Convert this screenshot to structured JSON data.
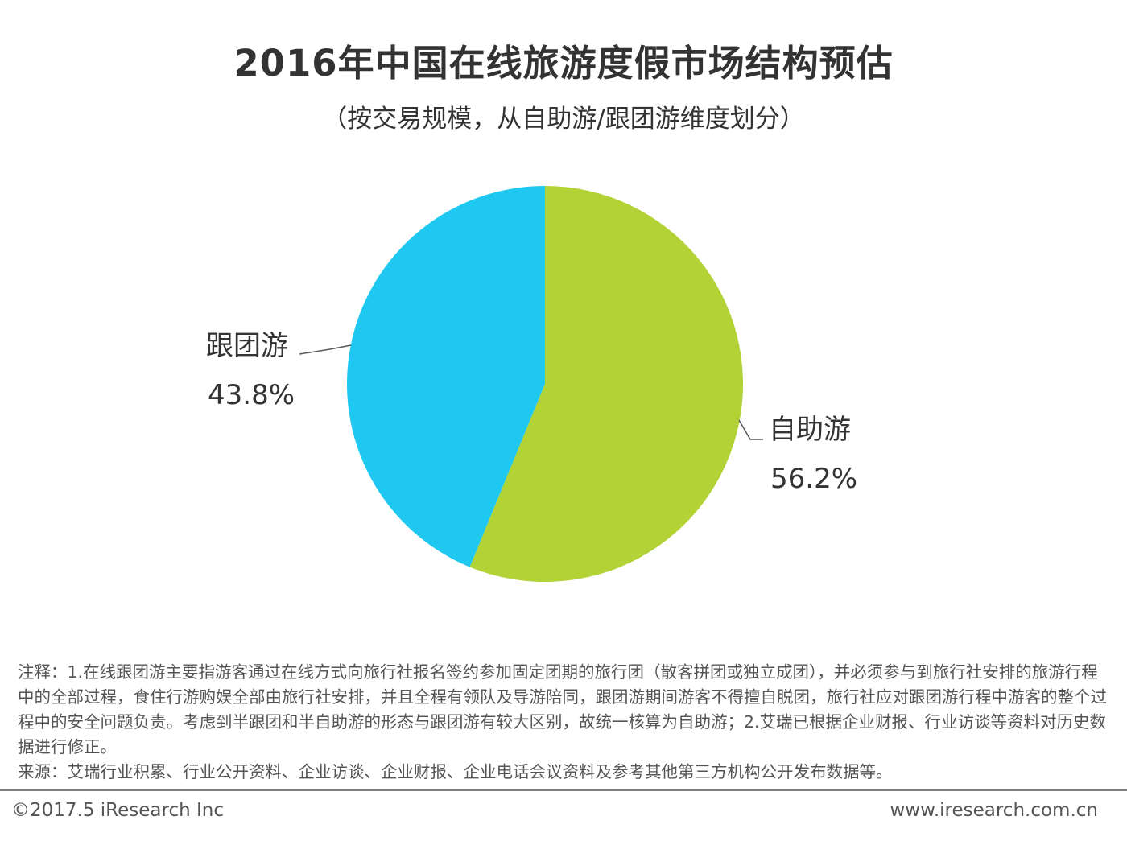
{
  "header": {
    "title": "2016年中国在线旅游度假市场结构预估",
    "subtitle": "（按交易规模，从自助游/跟团游维度划分）"
  },
  "chart_data": {
    "type": "pie",
    "title": "2016年中国在线旅游度假市场结构预估",
    "subtitle": "（按交易规模，从自助游/跟团游维度划分）",
    "slices": [
      {
        "label": "自助游",
        "value": 56.2,
        "display": "56.2%",
        "color": "#b2d235"
      },
      {
        "label": "跟团游",
        "value": 43.8,
        "display": "43.8%",
        "color": "#1fc8f0"
      }
    ],
    "start_angle": "12 o'clock",
    "direction": "clockwise",
    "label_line_color": "#595959"
  },
  "notes": {
    "note": "注释：1.在线跟团游主要指游客通过在线方式向旅行社报名签约参加固定团期的旅行团（散客拼团或独立成团），并必须参与到旅行社安排的旅游行程中的全部过程，食住行游购娱全部由旅行社安排，并且全程有领队及导游陪同，跟团游期间游客不得擅自脱团，旅行社应对跟团游行程中游客的整个过程中的安全问题负责。考虑到半跟团和半自助游的形态与跟团游有较大区别，故统一核算为自助游；2.艾瑞已根据企业财报、行业访谈等资料对历史数据进行修正。",
    "source": "来源：艾瑞行业积累、行业公开资料、企业访谈、企业财报、企业电话会议资料及参考其他第三方机构公开发布数据等。"
  },
  "footer": {
    "copyright": "©2017.5 iResearch Inc",
    "website": "www.iresearch.com.cn"
  }
}
